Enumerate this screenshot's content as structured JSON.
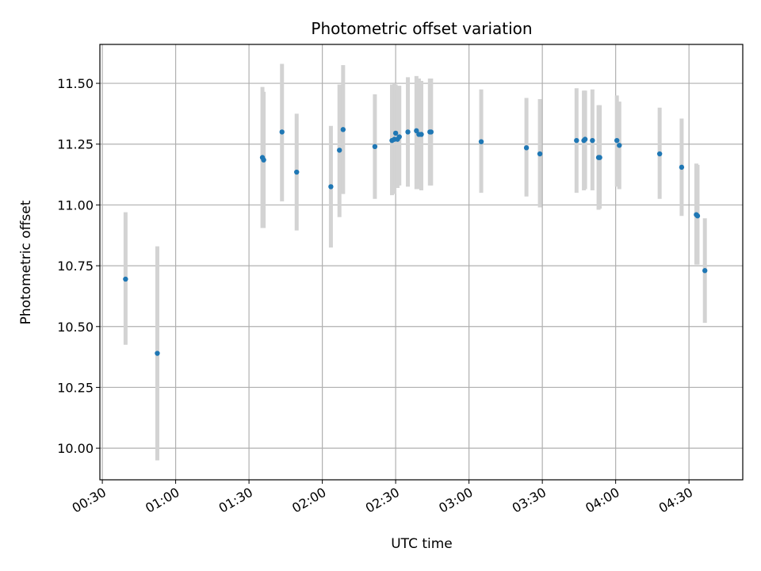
{
  "chart_data": {
    "type": "scatter",
    "title": "Photometric offset variation",
    "xlabel": "UTC time",
    "ylabel": "Photometric offset",
    "xlim": [
      "00:29",
      "04:52"
    ],
    "ylim": [
      9.87,
      11.66
    ],
    "x_ticks": [
      "00:30",
      "01:00",
      "01:30",
      "02:00",
      "02:30",
      "03:00",
      "03:30",
      "04:00",
      "04:30"
    ],
    "y_ticks": [
      "10.00",
      "10.25",
      "10.50",
      "10.75",
      "11.00",
      "11.25",
      "11.50"
    ],
    "grid": true,
    "point_color": "#1f77b4",
    "errorbar_color": "#d3d3d3",
    "points": [
      {
        "x": "00:39:30",
        "y": 10.695,
        "lo": 10.425,
        "hi": 10.97
      },
      {
        "x": "00:52:30",
        "y": 10.39,
        "lo": 9.95,
        "hi": 10.83
      },
      {
        "x": "01:35:30",
        "y": 11.195,
        "lo": 10.905,
        "hi": 11.485
      },
      {
        "x": "01:36:00",
        "y": 11.185,
        "lo": 10.905,
        "hi": 11.465
      },
      {
        "x": "01:43:30",
        "y": 11.3,
        "lo": 11.015,
        "hi": 11.58
      },
      {
        "x": "01:49:30",
        "y": 11.135,
        "lo": 10.895,
        "hi": 11.375
      },
      {
        "x": "02:03:30",
        "y": 11.075,
        "lo": 10.825,
        "hi": 11.325
      },
      {
        "x": "02:07:00",
        "y": 11.225,
        "lo": 10.95,
        "hi": 11.495
      },
      {
        "x": "02:08:30",
        "y": 11.31,
        "lo": 11.045,
        "hi": 11.575
      },
      {
        "x": "02:21:30",
        "y": 11.24,
        "lo": 11.025,
        "hi": 11.455
      },
      {
        "x": "02:28:30",
        "y": 11.265,
        "lo": 11.04,
        "hi": 11.495
      },
      {
        "x": "02:29:30",
        "y": 11.27,
        "lo": 11.045,
        "hi": 11.5
      },
      {
        "x": "02:30:00",
        "y": 11.295,
        "lo": 11.08,
        "hi": 11.495
      },
      {
        "x": "02:30:45",
        "y": 11.27,
        "lo": 11.07,
        "hi": 11.475
      },
      {
        "x": "02:31:30",
        "y": 11.28,
        "lo": 11.08,
        "hi": 11.49
      },
      {
        "x": "02:35:00",
        "y": 11.3,
        "lo": 11.075,
        "hi": 11.525
      },
      {
        "x": "02:38:30",
        "y": 11.305,
        "lo": 11.065,
        "hi": 11.53
      },
      {
        "x": "02:39:30",
        "y": 11.29,
        "lo": 11.065,
        "hi": 11.52
      },
      {
        "x": "02:40:30",
        "y": 11.29,
        "lo": 11.06,
        "hi": 11.51
      },
      {
        "x": "02:44:00",
        "y": 11.3,
        "lo": 11.08,
        "hi": 11.52
      },
      {
        "x": "02:44:30",
        "y": 11.3,
        "lo": 11.08,
        "hi": 11.52
      },
      {
        "x": "03:05:00",
        "y": 11.26,
        "lo": 11.05,
        "hi": 11.475
      },
      {
        "x": "03:23:30",
        "y": 11.235,
        "lo": 11.035,
        "hi": 11.44
      },
      {
        "x": "03:29:00",
        "y": 11.21,
        "lo": 10.99,
        "hi": 11.435
      },
      {
        "x": "03:44:00",
        "y": 11.265,
        "lo": 11.05,
        "hi": 11.48
      },
      {
        "x": "03:47:00",
        "y": 11.265,
        "lo": 11.06,
        "hi": 11.47
      },
      {
        "x": "03:47:30",
        "y": 11.27,
        "lo": 11.065,
        "hi": 11.47
      },
      {
        "x": "03:50:30",
        "y": 11.265,
        "lo": 11.06,
        "hi": 11.475
      },
      {
        "x": "03:53:00",
        "y": 11.195,
        "lo": 10.98,
        "hi": 11.41
      },
      {
        "x": "03:53:30",
        "y": 11.195,
        "lo": 10.985,
        "hi": 11.41
      },
      {
        "x": "04:00:30",
        "y": 11.265,
        "lo": 11.075,
        "hi": 11.45
      },
      {
        "x": "04:01:30",
        "y": 11.245,
        "lo": 11.065,
        "hi": 11.425
      },
      {
        "x": "04:18:00",
        "y": 11.21,
        "lo": 11.025,
        "hi": 11.4
      },
      {
        "x": "04:27:00",
        "y": 11.155,
        "lo": 10.955,
        "hi": 11.355
      },
      {
        "x": "04:33:00",
        "y": 10.96,
        "lo": 10.755,
        "hi": 11.17
      },
      {
        "x": "04:33:30",
        "y": 10.955,
        "lo": 10.755,
        "hi": 11.165
      },
      {
        "x": "04:36:30",
        "y": 10.73,
        "lo": 10.515,
        "hi": 10.945
      }
    ]
  }
}
